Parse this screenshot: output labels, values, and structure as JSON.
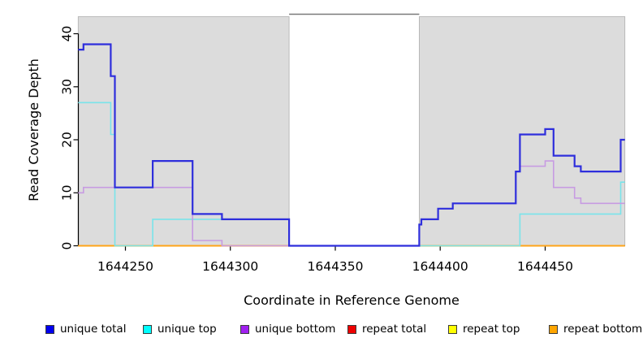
{
  "chart_data": {
    "type": "line",
    "subtype": "step-coverage",
    "title": "",
    "xlabel": "Coordinate in Reference Genome",
    "ylabel": "Read Coverage Depth",
    "xlim": [
      1644227.5,
      1644488
    ],
    "ylim": [
      0,
      43.5
    ],
    "x_ticks": [
      1644250,
      1644300,
      1644350,
      1644400,
      1644450
    ],
    "x_tick_labels": [
      "1644250",
      "1644300",
      "1644350",
      "1644400",
      "1644450"
    ],
    "y_ticks": [
      0,
      10,
      20,
      30,
      40
    ],
    "y_tick_labels": [
      "0",
      "10",
      "20",
      "30",
      "40"
    ],
    "grid": "off",
    "legend_position": "bottom",
    "colors": {
      "plot_background_shaded": "#dcdcdc",
      "shaded_border": "#b0b0b0",
      "masked_gap_background": "#ffffff",
      "masked_gap_top_border": "#7a7a7a",
      "axis": "#000000"
    },
    "shaded_regions": [
      {
        "x0": 1644227.5,
        "x1": 1644328
      },
      {
        "x0": 1644390,
        "x1": 1644488
      }
    ],
    "masked_gap": {
      "x0": 1644328,
      "x1": 1644390
    },
    "series": [
      {
        "name": "unique total",
        "legend_color": "#0000ee",
        "line_color": "#2e2edc",
        "segments": [
          {
            "steps": [
              [
                1644227.5,
                37
              ],
              [
                1644230,
                38
              ],
              [
                1644243,
                32
              ],
              [
                1644245,
                11
              ],
              [
                1644263,
                16
              ],
              [
                1644282,
                6
              ],
              [
                1644296,
                5
              ],
              [
                1644328,
                0
              ],
              [
                1644390,
                4
              ],
              [
                1644391,
                5
              ],
              [
                1644399,
                7
              ],
              [
                1644406,
                8
              ],
              [
                1644436,
                14
              ],
              [
                1644438,
                21
              ],
              [
                1644450,
                22
              ],
              [
                1644454,
                17
              ],
              [
                1644464,
                15
              ],
              [
                1644467,
                14
              ],
              [
                1644486,
                20
              ]
            ],
            "x_end": 1644488
          }
        ]
      },
      {
        "name": "unique top",
        "legend_color": "#00ffff",
        "line_color": "#79e4ea",
        "segments": [
          {
            "steps": [
              [
                1644227.5,
                27
              ],
              [
                1644243,
                21
              ],
              [
                1644245,
                0
              ],
              [
                1644263,
                5
              ],
              [
                1644328,
                0
              ],
              [
                1644438,
                6
              ],
              [
                1644486,
                12
              ]
            ],
            "x_end": 1644488
          }
        ]
      },
      {
        "name": "unique bottom",
        "legend_color": "#a020f0",
        "line_color": "#c79be2",
        "segments": [
          {
            "steps": [
              [
                1644227.5,
                10
              ],
              [
                1644230,
                11
              ],
              [
                1644282,
                1
              ],
              [
                1644296,
                0
              ],
              [
                1644390,
                4
              ],
              [
                1644391,
                5
              ],
              [
                1644399,
                7
              ],
              [
                1644406,
                8
              ],
              [
                1644436,
                14
              ],
              [
                1644438,
                15
              ],
              [
                1644450,
                16
              ],
              [
                1644454,
                11
              ],
              [
                1644464,
                9
              ],
              [
                1644467,
                8
              ]
            ],
            "x_end": 1644488
          }
        ]
      },
      {
        "name": "repeat total",
        "legend_color": "#ee0000",
        "line_color": "#dd2222",
        "segments": [
          {
            "steps": [
              [
                1644227.5,
                0
              ]
            ],
            "x_end": 1644328
          },
          {
            "steps": [
              [
                1644390,
                0
              ]
            ],
            "x_end": 1644488
          }
        ]
      },
      {
        "name": "repeat top",
        "legend_color": "#ffff00",
        "line_color": "#ffee00",
        "segments": [
          {
            "steps": [
              [
                1644227.5,
                0
              ]
            ],
            "x_end": 1644328
          },
          {
            "steps": [
              [
                1644390,
                0
              ]
            ],
            "x_end": 1644488
          }
        ]
      },
      {
        "name": "repeat bottom",
        "legend_color": "#ffa500",
        "line_color": "#ffa519",
        "segments": [
          {
            "steps": [
              [
                1644227.5,
                0
              ]
            ],
            "x_end": 1644328
          },
          {
            "steps": [
              [
                1644390,
                0
              ]
            ],
            "x_end": 1644488
          }
        ]
      }
    ]
  },
  "legend": {
    "items": [
      {
        "label": "unique total",
        "color": "#0000ee"
      },
      {
        "label": "unique top",
        "color": "#00ffff"
      },
      {
        "label": "unique bottom",
        "color": "#a020f0"
      },
      {
        "label": "repeat total",
        "color": "#ee0000"
      },
      {
        "label": "repeat top",
        "color": "#ffff00"
      },
      {
        "label": "repeat bottom",
        "color": "#ffa500"
      }
    ]
  }
}
